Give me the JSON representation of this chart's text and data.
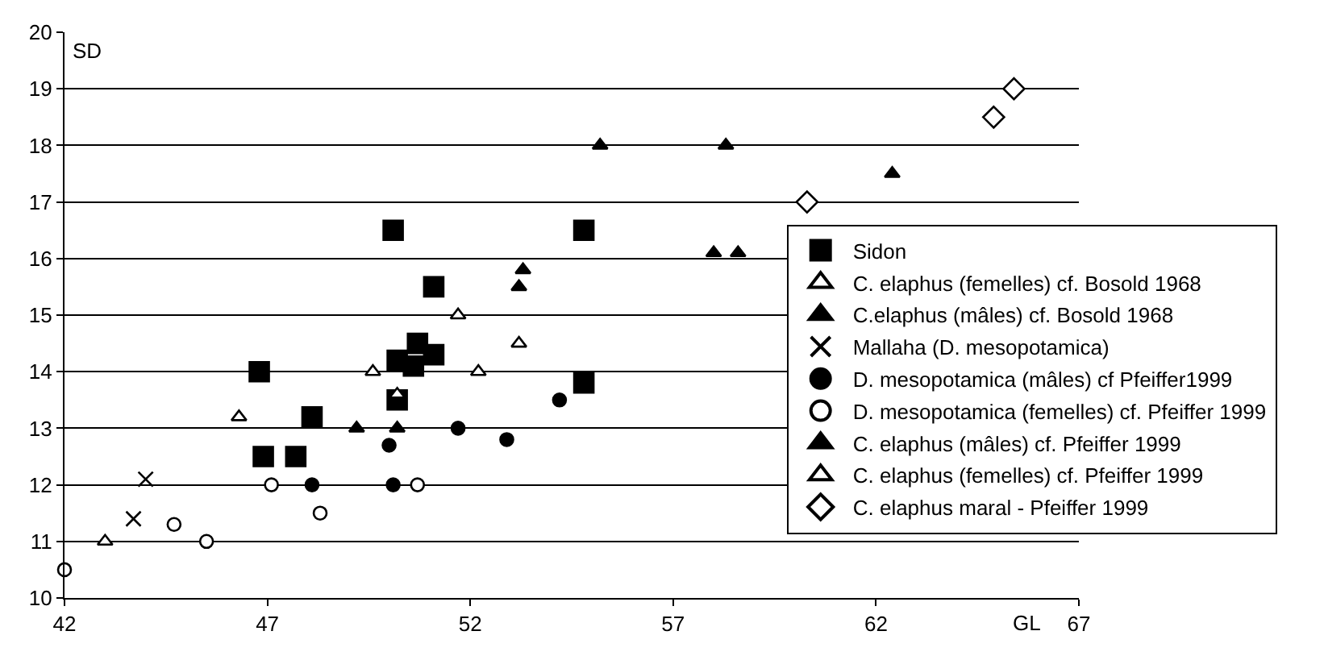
{
  "chart_data": {
    "type": "scatter",
    "xlabel": "GL",
    "ylabel": "SD",
    "xlim": [
      42,
      67
    ],
    "xticks": [
      42,
      47,
      52,
      57,
      62,
      67
    ],
    "ylim": [
      10,
      20
    ],
    "yticks": [
      10,
      11,
      12,
      13,
      14,
      15,
      16,
      17,
      18,
      19,
      20
    ],
    "grid": "y",
    "legend": "right",
    "series": [
      {
        "name": "Sidon",
        "color": "#000000",
        "marker": "square",
        "x": [
          46.8,
          46.9,
          47.7,
          48.1,
          50.1,
          50.2,
          50.2,
          50.7,
          50.6,
          51.1,
          51.1,
          54.8,
          54.8
        ],
        "values": [
          14.0,
          12.5,
          12.5,
          13.2,
          16.5,
          13.5,
          14.2,
          14.5,
          14.1,
          15.5,
          14.3,
          16.5,
          13.8
        ]
      },
      {
        "name": "C. elaphus (femelles) cf. Bosold 1968",
        "color": "#000000",
        "marker": "triangle-open",
        "x": [
          43.0,
          46.3,
          49.6,
          50.2,
          51.7
        ],
        "values": [
          11.0,
          13.2,
          14.0,
          13.6,
          15.0
        ]
      },
      {
        "name": "C.elaphus (mâles) cf. Bosold 1968",
        "color": "#000000",
        "marker": "triangle",
        "x": [
          49.2,
          50.2,
          53.3,
          53.2,
          55.2,
          58.3
        ],
        "values": [
          13.0,
          13.0,
          15.8,
          15.5,
          18.0,
          18.0
        ]
      },
      {
        "name": "Mallaha (D. mesopotamica)",
        "color": "#000000",
        "marker": "x",
        "x": [
          44.0,
          43.7
        ],
        "values": [
          12.1,
          11.4
        ]
      },
      {
        "name": "D. mesopotamica (mâles) cf Pfeiffer1999",
        "color": "#000000",
        "marker": "circle",
        "x": [
          48.1,
          50.0,
          50.1,
          51.7,
          52.9,
          54.2
        ],
        "values": [
          12.0,
          12.7,
          12.0,
          13.0,
          12.8,
          13.5
        ]
      },
      {
        "name": "D. mesopotamica (femelles) cf. Pfeiffer 1999",
        "color": "#000000",
        "marker": "circle-open",
        "x": [
          42.0,
          44.7,
          45.5,
          47.1,
          48.3,
          50.7
        ],
        "values": [
          10.5,
          11.3,
          11.0,
          12.0,
          11.5,
          12.0
        ]
      },
      {
        "name": "C. elaphus (mâles) cf. Pfeiffer 1999",
        "color": "#000000",
        "marker": "triangle",
        "x": [
          58.0,
          58.6,
          62.4
        ],
        "values": [
          16.1,
          16.1,
          17.5
        ]
      },
      {
        "name": "C. elaphus (femelles) cf. Pfeiffer 1999",
        "color": "#000000",
        "marker": "triangle-open",
        "x": [
          52.2,
          53.2
        ],
        "values": [
          14.0,
          14.5
        ]
      },
      {
        "name": "C. elaphus maral - Pfeiffer 1999",
        "color": "#000000",
        "marker": "diamond-open",
        "x": [
          60.3,
          64.9,
          65.4
        ],
        "values": [
          17.0,
          18.5,
          19.0
        ]
      }
    ]
  }
}
